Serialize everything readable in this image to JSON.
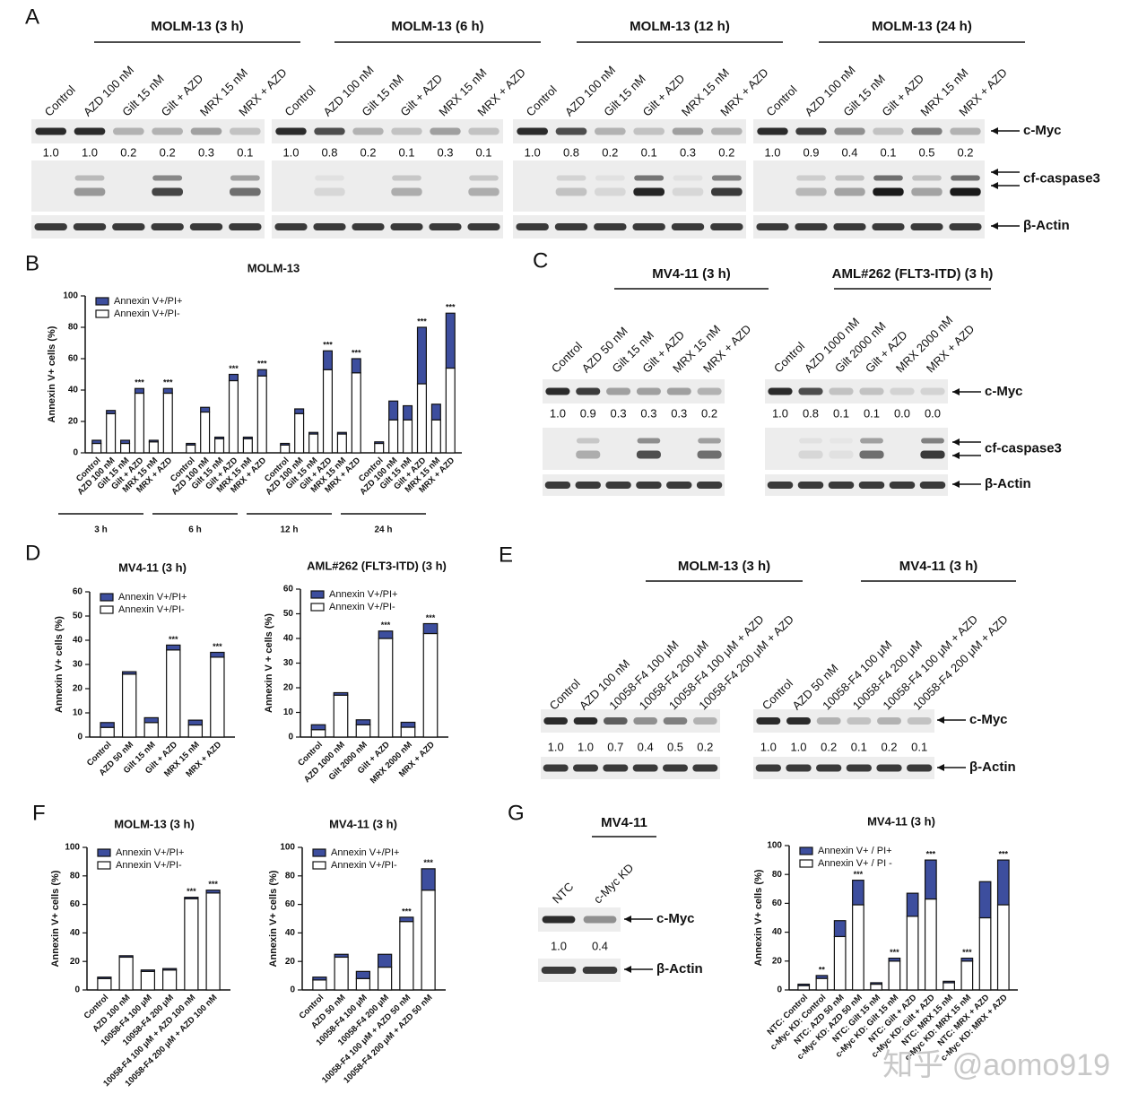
{
  "blots": [
    {
      "label": "A",
      "bands": [
        "c-Myc",
        "cf-caspase3",
        "β-Actin"
      ],
      "groups": [
        {
          "title": "MOLM-13 (3 h)",
          "lanes": [
            "Control",
            "AZD 100 nM",
            "Gilt 15 nM",
            "Gilt + AZD",
            "MRX 15 nM",
            "MRX + AZD"
          ],
          "quant": [
            "1.0",
            "1.0",
            "0.2",
            "0.2",
            "0.3",
            "0.1"
          ]
        },
        {
          "title": "MOLM-13 (6 h)",
          "lanes": [
            "Control",
            "AZD 100 nM",
            "Gilt 15 nM",
            "Gilt + AZD",
            "MRX 15 nM",
            "MRX + AZD"
          ],
          "quant": [
            "1.0",
            "0.8",
            "0.2",
            "0.1",
            "0.3",
            "0.1"
          ]
        },
        {
          "title": "MOLM-13 (12 h)",
          "lanes": [
            "Control",
            "AZD 100 nM",
            "Gilt 15 nM",
            "Gilt + AZD",
            "MRX 15 nM",
            "MRX + AZD"
          ],
          "quant": [
            "1.0",
            "0.8",
            "0.2",
            "0.1",
            "0.3",
            "0.2"
          ]
        },
        {
          "title": "MOLM-13 (24 h)",
          "lanes": [
            "Control",
            "AZD 100 nM",
            "Gilt 15 nM",
            "Gilt + AZD",
            "MRX 15  nM",
            "MRX + AZD"
          ],
          "quant": [
            "1.0",
            "0.9",
            "0.4",
            "0.1",
            "0.5",
            "0.2"
          ]
        }
      ]
    },
    {
      "label": "C",
      "bands": [
        "c-Myc",
        "cf-caspase3",
        "β-Actin"
      ],
      "groups": [
        {
          "title": "MV4-11 (3 h)",
          "lanes": [
            "Control",
            "AZD  50 nM",
            "Gilt 15 nM",
            "Gilt + AZD",
            "MRX 15 nM",
            "MRX + AZD"
          ],
          "quant": [
            "1.0",
            "0.9",
            "0.3",
            "0.3",
            "0.3",
            "0.2"
          ]
        },
        {
          "title": "AML#262 (FLT3-ITD) (3 h)",
          "lanes": [
            "Control",
            "AZD 1000 nM",
            "Gilt 2000 nM",
            "Gilt + AZD",
            "MRX 2000 nM",
            "MRX + AZD"
          ],
          "quant": [
            "1.0",
            "0.8",
            "0.1",
            "0.1",
            "0.0",
            "0.0"
          ]
        }
      ]
    },
    {
      "label": "E",
      "bands": [
        "c-Myc",
        "β-Actin"
      ],
      "groups": [
        {
          "title": "MOLM-13 (3 h)",
          "lanes": [
            "Control",
            "AZD  100 nM",
            "10058-F4 100 μM",
            "10058-F4 200 μM",
            "10058-F4 100 μM + AZD",
            "10058-F4 200 μM + AZD"
          ],
          "quant": [
            "1.0",
            "1.0",
            "0.7",
            "0.4",
            "0.5",
            "0.2"
          ]
        },
        {
          "title": "MV4-11 (3 h)",
          "lanes": [
            "Control",
            "AZD  50 nM",
            "10058-F4 100 μM",
            "10058-F4 200 μM",
            "10058-F4 100 μM + AZD",
            "10058-F4 200 μM + AZD"
          ],
          "quant": [
            "1.0",
            "1.0",
            "0.2",
            "0.1",
            "0.2",
            "0.1"
          ]
        }
      ]
    },
    {
      "label": "G",
      "bands": [
        "c-Myc",
        "β-Actin"
      ],
      "groups": [
        {
          "title": "MV4-11",
          "lanes": [
            "NTC",
            "c-Myc KD"
          ],
          "quant": [
            "1.0",
            "0.4"
          ]
        }
      ]
    }
  ],
  "chart_data": [
    {
      "type": "bar",
      "stacked": true,
      "panel": "B",
      "title": "MOLM-13",
      "ylabel": "Annexin V+ cells (%)",
      "legend": "top-left",
      "categories": [
        "Control",
        "AZD 100 nM",
        "Gilt 15 nM",
        "Gilt + AZD",
        "MRX 15 nM",
        "MRX + AZD",
        "Control",
        "AZD 100 nM",
        "Gilt 15 nM",
        "Gilt + AZD",
        "MRX 15 nM",
        "MRX + AZD",
        "Control",
        "AZD 100 nM",
        "Gilt 15 nM",
        "Gilt + AZD",
        "MRX 15 nM",
        "MRX + AZD",
        "Control",
        "AZD 100 nM",
        "Gilt 15 nM",
        "Gilt + AZD",
        "MRX 15 nM",
        "MRX + AZD"
      ],
      "group_labels": [
        "3 h",
        "6 h",
        "12 h",
        "24 h"
      ],
      "series": [
        {
          "name": "Annexin V+/PI+",
          "color": "#3d4e9e",
          "values": [
            2,
            2,
            2,
            3,
            1,
            3,
            1,
            3,
            1,
            4,
            1,
            4,
            1,
            3,
            1,
            12,
            1,
            9,
            1,
            12,
            9,
            36,
            10,
            35
          ]
        },
        {
          "name": "Annexin V+/PI-",
          "color": "#ffffff",
          "values": [
            6,
            25,
            6,
            38,
            7,
            38,
            5,
            26,
            9,
            46,
            9,
            49,
            5,
            25,
            12,
            53,
            12,
            51,
            6,
            21,
            21,
            44,
            21,
            54
          ]
        }
      ],
      "significance": [
        null,
        null,
        null,
        "***",
        null,
        "***",
        null,
        null,
        null,
        "***",
        null,
        "***",
        null,
        null,
        null,
        "***",
        null,
        "***",
        null,
        null,
        null,
        "***",
        null,
        "***"
      ],
      "ylim": [
        0,
        100
      ],
      "yticks": [
        0,
        20,
        40,
        60,
        80,
        100
      ]
    },
    {
      "type": "bar",
      "stacked": true,
      "panel": "D",
      "title": "MV4-11 (3 h)",
      "ylabel": "Annexin V+ cells (%)",
      "legend": "top-left",
      "categories": [
        "Control",
        "AZD 50 nM",
        "Gilt 15 nM",
        "Gilt + AZD",
        "MRX 15 nM",
        "MRX + AZD"
      ],
      "series": [
        {
          "name": "Annexin V+/PI+",
          "color": "#3d4e9e",
          "values": [
            2,
            1,
            2,
            2,
            2,
            2
          ]
        },
        {
          "name": "Annexin V+/PI-",
          "color": "#ffffff",
          "values": [
            4,
            26,
            6,
            36,
            5,
            33
          ]
        }
      ],
      "significance": [
        null,
        null,
        null,
        "***",
        null,
        "***"
      ],
      "ylim": [
        0,
        60
      ],
      "yticks": [
        0,
        10,
        20,
        30,
        40,
        50,
        60
      ]
    },
    {
      "type": "bar",
      "stacked": true,
      "title": "AML#262 (FLT3-ITD) (3 h)",
      "ylabel": "Annexin V + cells (%)",
      "legend": "top-left",
      "categories": [
        "Control",
        "AZD 1000 nM",
        "Gilt 2000 nM",
        "Gilt + AZD",
        "MRX 2000 nM",
        "MRX + AZD"
      ],
      "series": [
        {
          "name": "Annexin V+/PI+",
          "color": "#3d4e9e",
          "values": [
            2,
            1,
            2,
            3,
            2,
            4
          ]
        },
        {
          "name": "Annexin V+/PI-",
          "color": "#ffffff",
          "values": [
            3,
            17,
            5,
            40,
            4,
            42
          ]
        }
      ],
      "significance": [
        null,
        null,
        null,
        "***",
        null,
        "***"
      ],
      "ylim": [
        0,
        60
      ],
      "yticks": [
        0,
        10,
        20,
        30,
        40,
        50,
        60
      ]
    },
    {
      "type": "bar",
      "stacked": true,
      "panel": "F",
      "title": "MOLM-13 (3 h)",
      "ylabel": "Annexin V+ cells (%)",
      "legend": "top-left",
      "categories": [
        "Control",
        "AZD 100 nM",
        "10058-F4 100 μM",
        "10058-F4 200 μM",
        "10058-F4 100 μM + AZD 100 nM",
        "10058-F4 200 μM + AZD 100 nM"
      ],
      "series": [
        {
          "name": "Annexin V+/PI+",
          "color": "#3d4e9e",
          "values": [
            1,
            1,
            1,
            1,
            1,
            2
          ]
        },
        {
          "name": "Annexin V+/PI-",
          "color": "#ffffff",
          "values": [
            8,
            23,
            13,
            14,
            64,
            68
          ]
        }
      ],
      "significance": [
        null,
        null,
        null,
        null,
        "***",
        "***"
      ],
      "ylim": [
        0,
        100
      ],
      "yticks": [
        0,
        20,
        40,
        60,
        80,
        100
      ]
    },
    {
      "type": "bar",
      "stacked": true,
      "title": "MV4-11 (3 h)",
      "ylabel": "Annexin V+ cells (%)",
      "legend": "top-left",
      "categories": [
        "Control",
        "AZD 50 nM",
        "10058-F4 100 μM",
        "10058-F4 200 μM",
        "10058-F4 100 μM + AZD 50 nM",
        "10058-F4 200 μM + AZD 50 nM"
      ],
      "series": [
        {
          "name": "Annexin V+/PI+",
          "color": "#3d4e9e",
          "values": [
            2,
            2,
            5,
            9,
            3,
            15
          ]
        },
        {
          "name": "Annexin V+/PI-",
          "color": "#ffffff",
          "values": [
            7,
            23,
            8,
            16,
            48,
            70
          ]
        }
      ],
      "significance": [
        null,
        null,
        null,
        null,
        "***",
        "***"
      ],
      "ylim": [
        0,
        100
      ],
      "yticks": [
        0,
        20,
        40,
        60,
        80,
        100
      ]
    },
    {
      "type": "bar",
      "stacked": true,
      "title": "MV4-11 (3 h)",
      "ylabel": "Annexin V+ cells (%)",
      "legend": "top-left",
      "categories": [
        "NTC: Control",
        "c-Myc KD: Control",
        "NTC: AZD 50 nM",
        "c-Myc KD: AZD 50 nM",
        "NTC: Gilt 15 nM",
        "c-Myc KD: Gilt 15 nM",
        "NTC: Gilt + AZD",
        "c-Myc KD: Gilt + AZD",
        "NTC: MRX 15 nM",
        "c-Myc KD: MRX 15 nM",
        "NTC: MRX + AZD",
        "c-Myc KD: MRX + AZD"
      ],
      "series": [
        {
          "name": "Annexin V+ / PI+",
          "color": "#3d4e9e",
          "values": [
            1,
            2,
            11,
            17,
            1,
            2,
            16,
            27,
            1,
            2,
            25,
            31
          ]
        },
        {
          "name": "Annexin V+ / PI -",
          "color": "#ffffff",
          "values": [
            3,
            8,
            37,
            59,
            4,
            20,
            51,
            63,
            5,
            20,
            50,
            59
          ]
        }
      ],
      "significance": [
        null,
        "**",
        null,
        "***",
        null,
        "***",
        null,
        "***",
        null,
        "***",
        null,
        "***"
      ],
      "ylim": [
        0,
        100
      ],
      "yticks": [
        0,
        20,
        40,
        60,
        80,
        100
      ]
    }
  ],
  "watermark": "知乎 @aomo919"
}
